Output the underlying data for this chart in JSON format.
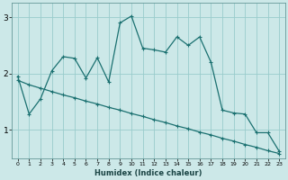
{
  "xlabel": "Humidex (Indice chaleur)",
  "ylabel": "",
  "bg_color": "#cce8e8",
  "line_color": "#1a7070",
  "grid_color": "#99cccc",
  "x_line1": [
    0,
    1,
    2,
    3,
    4,
    5,
    6,
    7,
    8,
    9,
    10,
    11,
    12,
    13,
    14,
    15,
    16,
    17,
    18,
    19,
    20,
    21,
    22,
    23
  ],
  "y_line1": [
    1.95,
    1.28,
    1.55,
    2.05,
    2.3,
    2.27,
    1.92,
    2.28,
    1.85,
    2.9,
    3.02,
    2.45,
    2.42,
    2.38,
    2.65,
    2.5,
    2.65,
    2.2,
    1.35,
    1.3,
    1.28,
    0.95,
    0.95,
    0.62
  ],
  "x_line2": [
    0,
    1,
    2,
    3,
    4,
    5,
    6,
    7,
    8,
    9,
    10,
    11,
    12,
    13,
    14,
    15,
    16,
    17,
    18,
    19,
    20,
    21,
    22,
    23
  ],
  "y_line2": [
    1.88,
    1.8,
    1.74,
    1.68,
    1.62,
    1.57,
    1.51,
    1.46,
    1.4,
    1.35,
    1.29,
    1.24,
    1.18,
    1.13,
    1.07,
    1.02,
    0.96,
    0.91,
    0.85,
    0.8,
    0.74,
    0.69,
    0.63,
    0.58
  ],
  "xlim": [
    -0.5,
    23.5
  ],
  "ylim": [
    0.5,
    3.25
  ],
  "yticks": [
    1,
    2,
    3
  ],
  "xticks": [
    0,
    1,
    2,
    3,
    4,
    5,
    6,
    7,
    8,
    9,
    10,
    11,
    12,
    13,
    14,
    15,
    16,
    17,
    18,
    19,
    20,
    21,
    22,
    23
  ]
}
